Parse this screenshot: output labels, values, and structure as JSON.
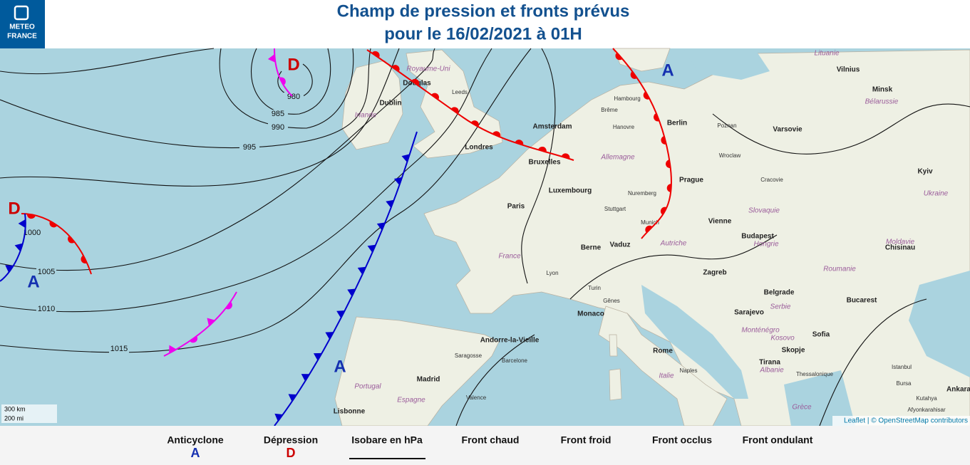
{
  "header": {
    "logo": [
      "METEO",
      "FRANCE"
    ],
    "title": [
      "Champ de pression et fronts prévus",
      "pour le 16/02/2021 à 01H"
    ]
  },
  "map": {
    "pressure_centers": [
      {
        "symbol": "D",
        "kind": "low"
      },
      {
        "symbol": "A",
        "kind": "high"
      },
      {
        "symbol": "D",
        "kind": "low"
      },
      {
        "symbol": "A",
        "kind": "high"
      },
      {
        "symbol": "A",
        "kind": "high"
      }
    ],
    "isobars": [
      {
        "label": 980
      },
      {
        "label": 985
      },
      {
        "label": 990
      },
      {
        "label": 995
      },
      {
        "label": 1000
      },
      {
        "label": 1005
      },
      {
        "label": 1010
      },
      {
        "label": 1015
      }
    ],
    "places": [
      {
        "name": "Dublin",
        "kind": "city"
      },
      {
        "name": "Douglas",
        "kind": "city"
      },
      {
        "name": "Leeds",
        "kind": "town"
      },
      {
        "name": "Londres",
        "kind": "city"
      },
      {
        "name": "Amsterdam",
        "kind": "city"
      },
      {
        "name": "Bruxelles",
        "kind": "city"
      },
      {
        "name": "Luxembourg",
        "kind": "city"
      },
      {
        "name": "Paris",
        "kind": "city"
      },
      {
        "name": "Hambourg",
        "kind": "town"
      },
      {
        "name": "Brême",
        "kind": "town"
      },
      {
        "name": "Hanovre",
        "kind": "town"
      },
      {
        "name": "Berlin",
        "kind": "city"
      },
      {
        "name": "Poznan",
        "kind": "town"
      },
      {
        "name": "Varsovie",
        "kind": "city"
      },
      {
        "name": "Vilnius",
        "kind": "city"
      },
      {
        "name": "Minsk",
        "kind": "city"
      },
      {
        "name": "Prague",
        "kind": "city"
      },
      {
        "name": "Wroclaw",
        "kind": "town"
      },
      {
        "name": "Cracovie",
        "kind": "town"
      },
      {
        "name": "Kyiv",
        "kind": "city"
      },
      {
        "name": "Vienne",
        "kind": "city"
      },
      {
        "name": "Budapest",
        "kind": "city"
      },
      {
        "name": "Munich",
        "kind": "town"
      },
      {
        "name": "Stuttgart",
        "kind": "town"
      },
      {
        "name": "Nuremberg",
        "kind": "town"
      },
      {
        "name": "Berne",
        "kind": "city"
      },
      {
        "name": "Vaduz",
        "kind": "city"
      },
      {
        "name": "Lyon",
        "kind": "town"
      },
      {
        "name": "Turin",
        "kind": "town"
      },
      {
        "name": "Monaco",
        "kind": "city"
      },
      {
        "name": "Gênes",
        "kind": "town"
      },
      {
        "name": "Zagreb",
        "kind": "city"
      },
      {
        "name": "Belgrade",
        "kind": "city"
      },
      {
        "name": "Sarajevo",
        "kind": "city"
      },
      {
        "name": "Bucarest",
        "kind": "city"
      },
      {
        "name": "Chisinau",
        "kind": "city"
      },
      {
        "name": "Sofia",
        "kind": "city"
      },
      {
        "name": "Skopje",
        "kind": "city"
      },
      {
        "name": "Tirana",
        "kind": "city"
      },
      {
        "name": "Thessalonique",
        "kind": "town"
      },
      {
        "name": "Rome",
        "kind": "city"
      },
      {
        "name": "Naples",
        "kind": "town"
      },
      {
        "name": "Barcelone",
        "kind": "town"
      },
      {
        "name": "Madrid",
        "kind": "city"
      },
      {
        "name": "Valence",
        "kind": "town"
      },
      {
        "name": "Lisbonne",
        "kind": "city"
      },
      {
        "name": "Saragosse",
        "kind": "town"
      },
      {
        "name": "Andorre-la-Vieille",
        "kind": "city"
      },
      {
        "name": "Istanbul",
        "kind": "town"
      },
      {
        "name": "Bursa",
        "kind": "town"
      },
      {
        "name": "Ankara",
        "kind": "city"
      },
      {
        "name": "Kutahya",
        "kind": "town"
      },
      {
        "name": "Afyonkarahisar",
        "kind": "town"
      },
      {
        "name": "Irlande",
        "kind": "country"
      },
      {
        "name": "Royaume-Uni",
        "kind": "country"
      },
      {
        "name": "France",
        "kind": "country"
      },
      {
        "name": "Espagne",
        "kind": "country"
      },
      {
        "name": "Portugal",
        "kind": "country"
      },
      {
        "name": "Allemagne",
        "kind": "country"
      },
      {
        "name": "Ukraine",
        "kind": "country"
      },
      {
        "name": "Roumanie",
        "kind": "country"
      },
      {
        "name": "Hongrie",
        "kind": "country"
      },
      {
        "name": "Slovaquie",
        "kind": "country"
      },
      {
        "name": "Serbie",
        "kind": "country"
      },
      {
        "name": "Grèce",
        "kind": "country"
      },
      {
        "name": "Albanie",
        "kind": "country"
      },
      {
        "name": "Bélarussie",
        "kind": "country"
      },
      {
        "name": "Lituanie",
        "kind": "country"
      },
      {
        "name": "Autriche",
        "kind": "country"
      },
      {
        "name": "Italie",
        "kind": "country"
      },
      {
        "name": "Monténégro",
        "kind": "country"
      },
      {
        "name": "Kosovo",
        "kind": "country"
      },
      {
        "name": "Moldavie",
        "kind": "country"
      }
    ],
    "scale": [
      "300 km",
      "200 mi"
    ],
    "attribution": "Leaflet | © OpenStreetMap contributors"
  },
  "legend": [
    {
      "label": "Anticyclone",
      "symbol": "A"
    },
    {
      "label": "Dépression",
      "symbol": "D"
    },
    {
      "label": "Isobare en hPa"
    },
    {
      "label": "Front chaud"
    },
    {
      "label": "Front froid"
    },
    {
      "label": "Front occlus"
    },
    {
      "label": "Front ondulant"
    }
  ]
}
